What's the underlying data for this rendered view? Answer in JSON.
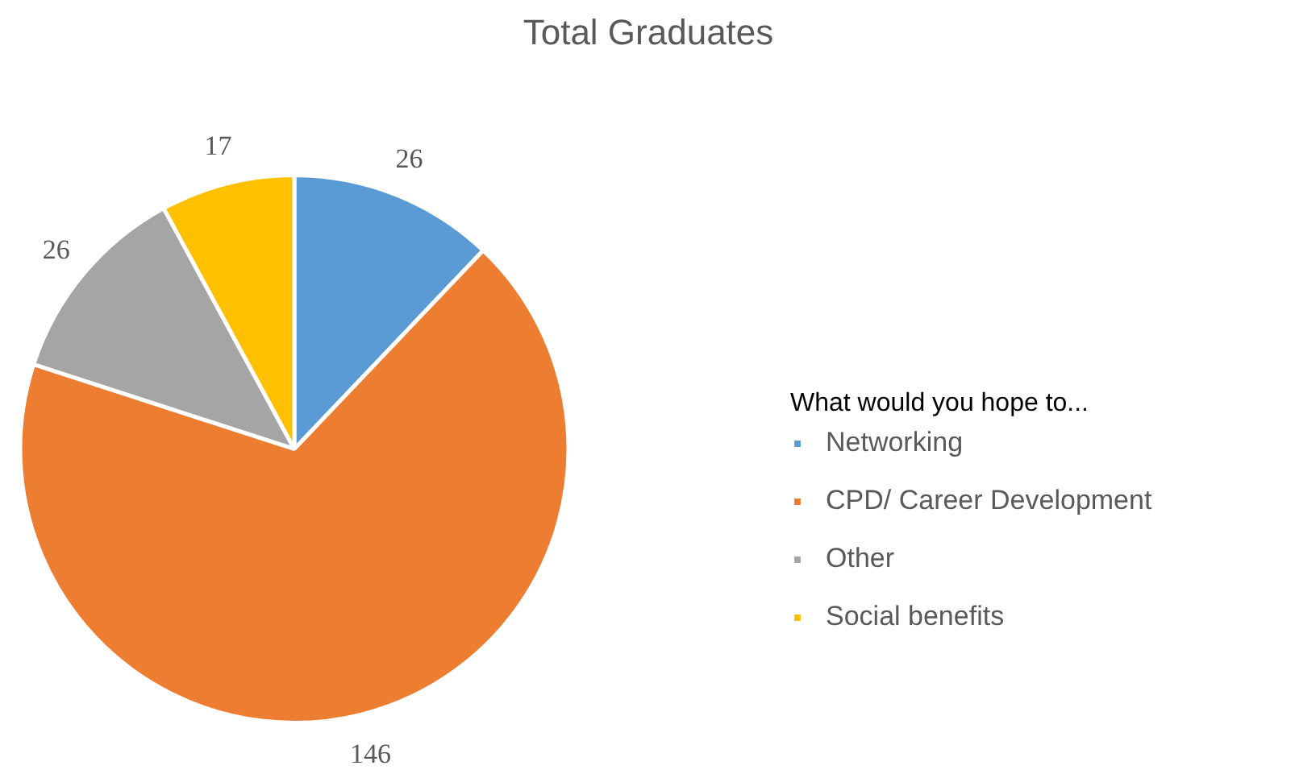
{
  "chart_data": {
    "type": "pie",
    "title": "Total Graduates",
    "legend_title": "What would you hope to...",
    "categories": [
      "Networking",
      "CPD/ Career Development",
      "Other",
      "Social benefits"
    ],
    "values": [
      26,
      146,
      26,
      17
    ],
    "colors": [
      "#5b9bd5",
      "#ed7d31",
      "#a5a5a5",
      "#ffc000"
    ],
    "data_labels": true,
    "legend": "right"
  }
}
